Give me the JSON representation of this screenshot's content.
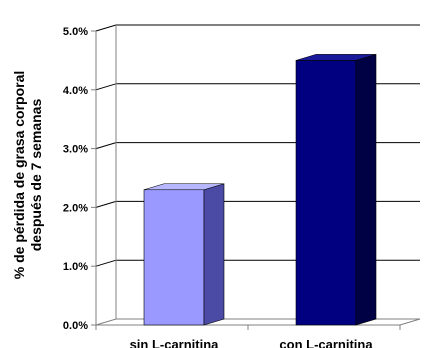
{
  "chart_data": {
    "type": "bar",
    "three_d": true,
    "grid": true,
    "categories": [
      "sin L-carnitina",
      "con L-carnitina"
    ],
    "values": [
      2.3,
      4.5
    ],
    "colors": {
      "bar1_front": "#9999ff",
      "bar1_side": "#4b4ba6",
      "bar1_top": "#b7b7ff",
      "bar2_front": "#000080",
      "bar2_side": "#000045",
      "bar2_top": "#1a1a9c",
      "grid": "#000000",
      "axis": "#808080"
    },
    "ylim": [
      0,
      5
    ],
    "yticks": [
      "0.0%",
      "1.0%",
      "2.0%",
      "3.0%",
      "4.0%",
      "5.0%"
    ],
    "ylabel_lines": [
      "% de pérdida de grasa corporal",
      "después de 7 semanas"
    ]
  }
}
